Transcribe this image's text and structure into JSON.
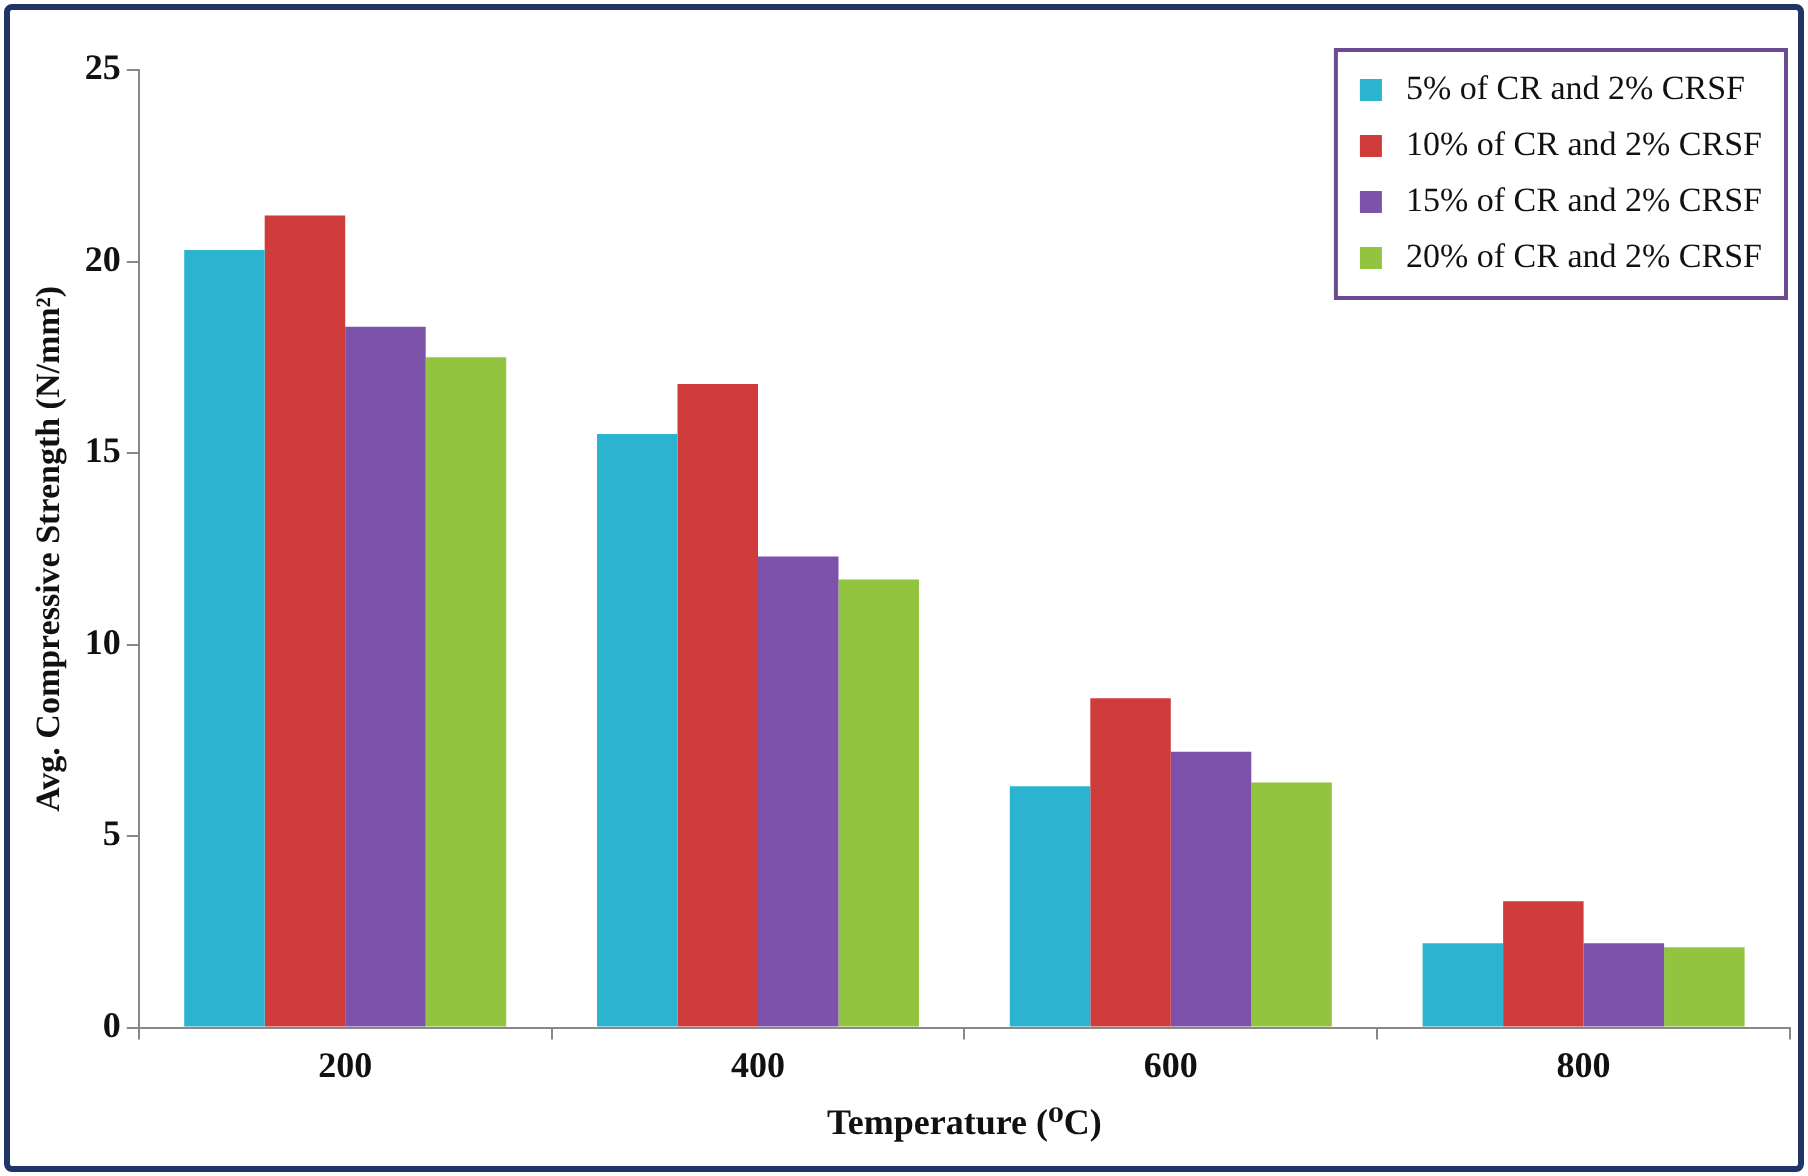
{
  "chart_data": {
    "type": "bar",
    "xlabel": "Temperature (⁰C)",
    "ylabel": "Avg. Compressive Strength (N/mm²)",
    "categories": [
      "200",
      "400",
      "600",
      "800"
    ],
    "series": [
      {
        "name": "5% of CR and 2% CRSF",
        "color": "#2bb3cf",
        "values": [
          20.3,
          15.5,
          6.3,
          2.2
        ]
      },
      {
        "name": "10% of CR and 2% CRSF",
        "color": "#d03b3b",
        "values": [
          21.2,
          16.8,
          8.6,
          3.3
        ]
      },
      {
        "name": "15% of CR and 2% CRSF",
        "color": "#7d52ab",
        "values": [
          18.3,
          12.3,
          7.2,
          2.2
        ]
      },
      {
        "name": "20% of CR and 2% CRSF",
        "color": "#93c440",
        "values": [
          17.5,
          11.7,
          6.4,
          2.1
        ]
      }
    ],
    "ylim": [
      0,
      25
    ],
    "yticks": [
      0,
      5,
      10,
      15,
      20,
      25
    ],
    "grid": false,
    "legend": "top right"
  }
}
